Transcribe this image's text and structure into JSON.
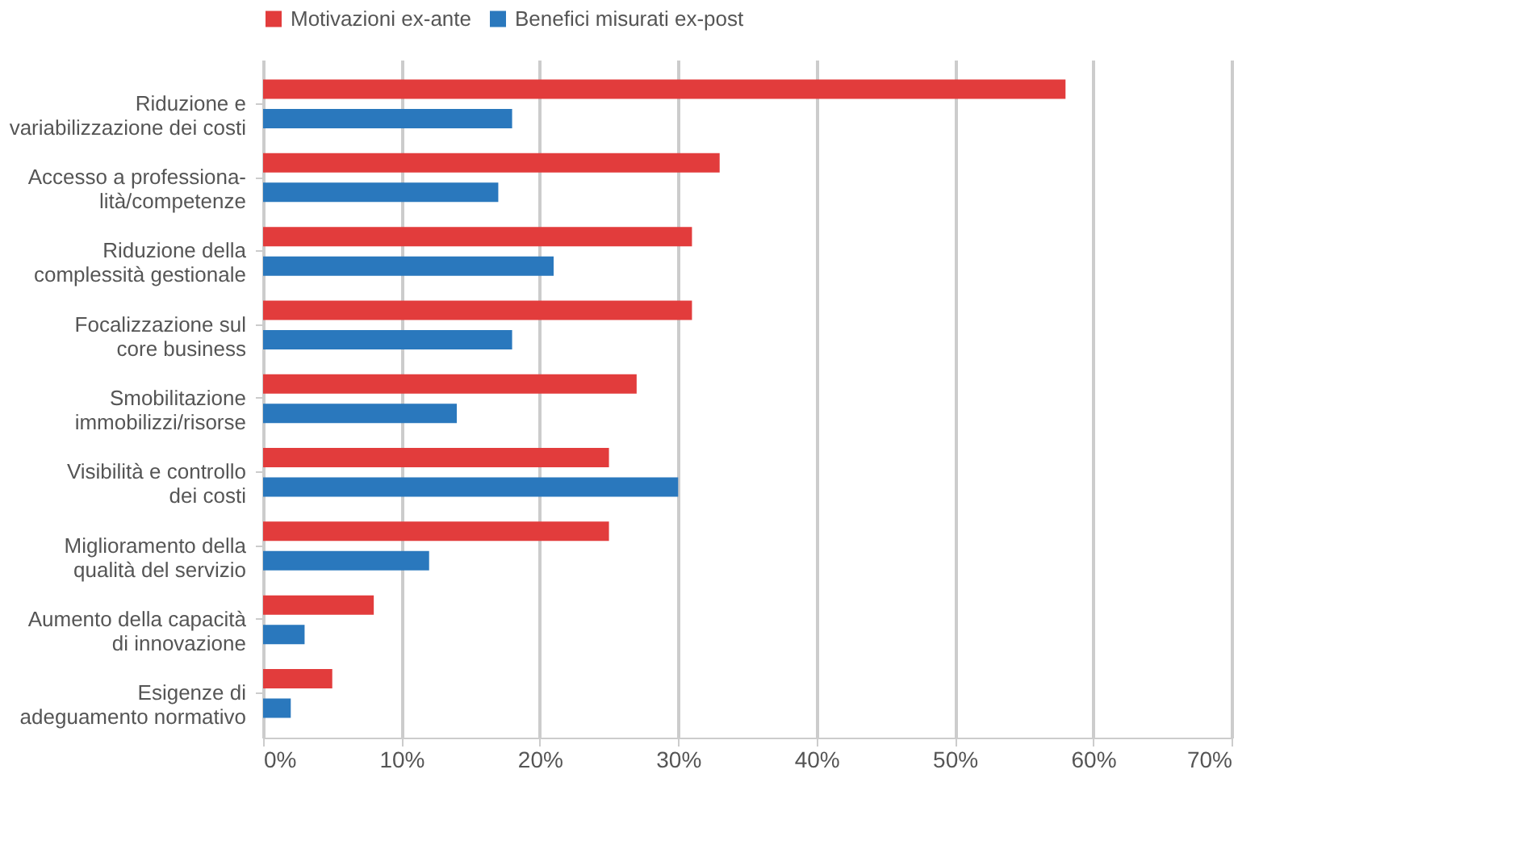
{
  "chart_data": {
    "type": "bar",
    "orientation": "horizontal",
    "categories": [
      "Riduzione e\nvariabilizzazione dei costi",
      "Accesso a professiona-\nlità/competenze",
      "Riduzione della\ncomplessità gestionale",
      "Focalizzazione sul\ncore business",
      "Smobilitazione\nimmobilizzi/risorse",
      "Visibilità e controllo\ndei costi",
      "Miglioramento della\nqualità del servizio",
      "Aumento della capacità\ndi innovazione",
      "Esigenze di\nadeguamento normativo"
    ],
    "series": [
      {
        "name": "Motivazioni ex-ante",
        "color": "#e23c3c",
        "values": [
          58,
          33,
          31,
          31,
          27,
          25,
          25,
          8,
          5
        ]
      },
      {
        "name": "Benefici misurati ex-post",
        "color": "#2a78bd",
        "values": [
          18,
          17,
          21,
          18,
          14,
          30,
          12,
          3,
          2
        ]
      }
    ],
    "xlim": [
      0,
      70
    ],
    "xticks": [
      {
        "value": 0,
        "label": "0%"
      },
      {
        "value": 10,
        "label": "10%"
      },
      {
        "value": 20,
        "label": "20%"
      },
      {
        "value": 30,
        "label": "30%"
      },
      {
        "value": 40,
        "label": "40%"
      },
      {
        "value": 50,
        "label": "50%"
      },
      {
        "value": 60,
        "label": "60%"
      },
      {
        "value": 70,
        "label": "70%"
      }
    ],
    "grid": "x",
    "legend": "top"
  }
}
